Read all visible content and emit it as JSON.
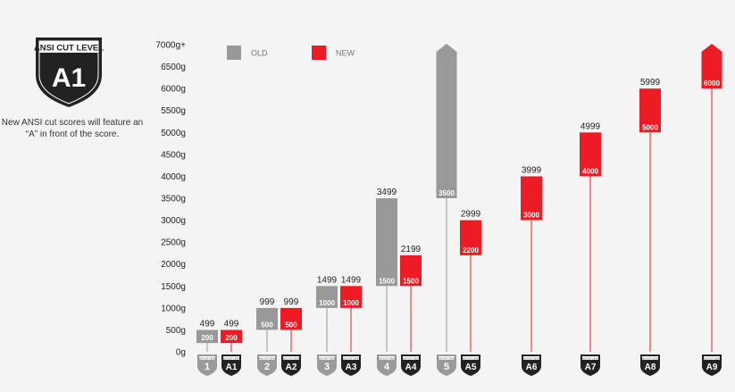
{
  "badge": {
    "title": "ANSI CUT LEVEL",
    "level": "A1"
  },
  "note": "New ANSI cut scores will feature an “A” in front of the score.",
  "colors": {
    "old": "#999999",
    "new": "#ed1c24",
    "badge": "#222222",
    "badge_old": "#9a9a9a"
  },
  "chart_data": {
    "type": "bar",
    "title": "",
    "xlabel": "",
    "ylabel": "",
    "ylim": [
      0,
      7000
    ],
    "y_ticks": [
      "0g",
      "500g",
      "1000g",
      "1500g",
      "2000g",
      "2500g",
      "3000g",
      "3500g",
      "4000g",
      "4500g",
      "5000g",
      "5500g",
      "6000g",
      "6500g",
      "7000g+"
    ],
    "legend": {
      "position": "top-left",
      "old": "OLD",
      "new": "NEW"
    },
    "badge_header": "ANSI CUT LEVEL",
    "series": [
      {
        "name": "OLD",
        "levels": [
          {
            "label": "1",
            "low": 200,
            "high": 499,
            "low_label": "200",
            "high_label": "499"
          },
          {
            "label": "2",
            "low": 500,
            "high": 999,
            "low_label": "500",
            "high_label": "999"
          },
          {
            "label": "3",
            "low": 1000,
            "high": 1499,
            "low_label": "1000",
            "high_label": "1499"
          },
          {
            "label": "4",
            "low": 1500,
            "high": 3499,
            "low_label": "1500",
            "high_label": "3499"
          },
          {
            "label": "5",
            "low": 3500,
            "high": 7000,
            "low_label": "3500",
            "high_label": "",
            "open_ended": true
          }
        ]
      },
      {
        "name": "NEW",
        "levels": [
          {
            "label": "A1",
            "low": 200,
            "high": 499,
            "low_label": "200",
            "high_label": "499"
          },
          {
            "label": "A2",
            "low": 500,
            "high": 999,
            "low_label": "500",
            "high_label": "999"
          },
          {
            "label": "A3",
            "low": 1000,
            "high": 1499,
            "low_label": "1000",
            "high_label": "1499"
          },
          {
            "label": "A4",
            "low": 1500,
            "high": 2199,
            "low_label": "1500",
            "high_label": "2199"
          },
          {
            "label": "A5",
            "low": 2200,
            "high": 2999,
            "low_label": "2200",
            "high_label": "2999"
          },
          {
            "label": "A6",
            "low": 3000,
            "high": 3999,
            "low_label": "3000",
            "high_label": "3999"
          },
          {
            "label": "A7",
            "low": 4000,
            "high": 4999,
            "low_label": "4000",
            "high_label": "4999"
          },
          {
            "label": "A8",
            "low": 5000,
            "high": 5999,
            "low_label": "5000",
            "high_label": "5999"
          },
          {
            "label": "A9",
            "low": 6000,
            "high": 7000,
            "low_label": "6000",
            "high_label": "",
            "open_ended": true
          }
        ]
      }
    ]
  }
}
